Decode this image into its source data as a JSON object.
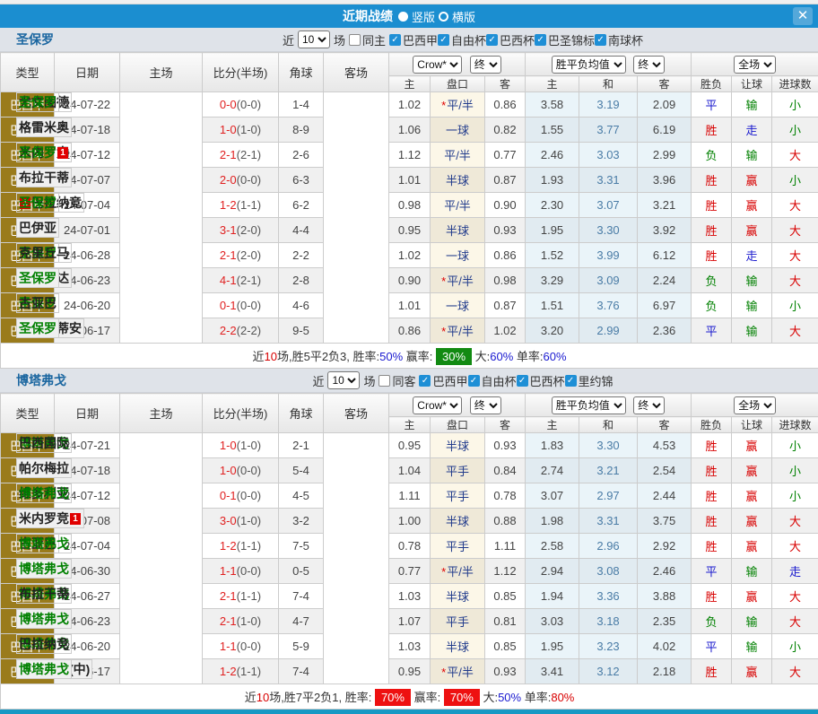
{
  "titlebar": {
    "title": "近期战绩",
    "vertical": "竖版",
    "horizontal": "横版",
    "close_icon": "✕"
  },
  "table": {
    "main_headers": [
      "类型",
      "日期",
      "主场",
      "比分(半场)",
      "角球",
      "客场"
    ],
    "sub_headers": [
      "主",
      "盘口",
      "客",
      "主",
      "和",
      "客",
      "胜负",
      "让球",
      "进球数"
    ],
    "selects": {
      "odds_company": "Crow*",
      "final_a": "终",
      "avg_label": "胜平负均值",
      "final_b": "终",
      "scope": "全场"
    }
  },
  "colors": {
    "titlebar_bg": "#1b8ed0",
    "filterbar_bg": "#dfe3e9",
    "checkbox_blue": "#1e8fd6",
    "league_cell_bg": "#9a7b1c",
    "win_red": "#d80000",
    "lose_green": "#008000",
    "draw_blue": "#1a1ace",
    "avg_draw_text": "#4a7ca6",
    "badge_green_bg": "#128a12",
    "badge_red_bg": "#ee1111",
    "bottom_bar": "#1799c4"
  },
  "sections": [
    {
      "team": "圣保罗",
      "filter": {
        "near": "近",
        "count": "10",
        "games": "场",
        "same": "同主",
        "leagues": [
          "巴西甲",
          "自由杯",
          "巴西杯",
          "巴圣锦标",
          "南球杯"
        ]
      },
      "rows": [
        {
          "league": "巴西甲",
          "date": "24-07-22",
          "home": {
            "name": "尤文图德"
          },
          "score": "0-0",
          "half": "(0-0)",
          "corner": "1-4",
          "away": {
            "name": "圣保罗",
            "green": true
          },
          "odds": [
            "1.02",
            "*平/半",
            "0.86"
          ],
          "avg": [
            "3.58",
            "3.19",
            "2.09"
          ],
          "res": [
            "平",
            "输",
            "小"
          ]
        },
        {
          "league": "巴西甲",
          "date": "24-07-18",
          "home": {
            "name": "圣保罗",
            "green": true,
            "badge": "L"
          },
          "score": "1-0",
          "half": "(1-0)",
          "corner": "8-9",
          "away": {
            "name": "格雷米奥"
          },
          "odds": [
            "1.06",
            "一球",
            "0.82"
          ],
          "avg": [
            "1.55",
            "3.77",
            "6.19"
          ],
          "res": [
            "胜",
            "走",
            "小"
          ]
        },
        {
          "league": "巴西甲",
          "date": "24-07-12",
          "home": {
            "name": "米内罗竞"
          },
          "score": "2-1",
          "half": "(2-1)",
          "corner": "2-6",
          "away": {
            "name": "圣保罗",
            "green": true,
            "badge": "R"
          },
          "odds": [
            "1.12",
            "平/半",
            "0.77"
          ],
          "avg": [
            "2.46",
            "3.03",
            "2.99"
          ],
          "res": [
            "负",
            "输",
            "大"
          ]
        },
        {
          "league": "巴西甲",
          "date": "24-07-07",
          "home": {
            "name": "圣保罗",
            "green": true
          },
          "score": "2-0",
          "half": "(0-0)",
          "corner": "6-3",
          "away": {
            "name": "布拉干蒂"
          },
          "odds": [
            "1.01",
            "半球",
            "0.87"
          ],
          "avg": [
            "1.93",
            "3.31",
            "3.96"
          ],
          "res": [
            "胜",
            "赢",
            "小"
          ]
        },
        {
          "league": "巴西甲",
          "date": "24-07-04",
          "home": {
            "name": "巴拉纳竞",
            "badge": "L"
          },
          "score": "1-2",
          "half": "(1-1)",
          "corner": "6-2",
          "away": {
            "name": "圣保罗",
            "green": true
          },
          "odds": [
            "0.98",
            "平/半",
            "0.90"
          ],
          "avg": [
            "2.30",
            "3.07",
            "3.21"
          ],
          "res": [
            "胜",
            "赢",
            "大"
          ]
        },
        {
          "league": "巴西甲",
          "date": "24-07-01",
          "home": {
            "name": "圣保罗",
            "green": true
          },
          "score": "3-1",
          "half": "(2-0)",
          "corner": "4-4",
          "away": {
            "name": "巴伊亚"
          },
          "odds": [
            "0.95",
            "半球",
            "0.93"
          ],
          "avg": [
            "1.95",
            "3.30",
            "3.92"
          ],
          "res": [
            "胜",
            "赢",
            "大"
          ]
        },
        {
          "league": "巴西甲",
          "date": "24-06-28",
          "home": {
            "name": "圣保罗",
            "green": true
          },
          "score": "2-1",
          "half": "(2-0)",
          "corner": "2-2",
          "away": {
            "name": "克里丘马"
          },
          "odds": [
            "1.02",
            "一球",
            "0.86"
          ],
          "avg": [
            "1.52",
            "3.99",
            "6.12"
          ],
          "res": [
            "胜",
            "走",
            "大"
          ]
        },
        {
          "league": "巴西甲",
          "date": "24-06-23",
          "home": {
            "name": "瓦斯科达"
          },
          "score": "4-1",
          "half": "(2-1)",
          "corner": "2-8",
          "away": {
            "name": "圣保罗",
            "green": true
          },
          "odds": [
            "0.90",
            "*平/半",
            "0.98"
          ],
          "avg": [
            "3.29",
            "3.09",
            "2.24"
          ],
          "res": [
            "负",
            "输",
            "大"
          ]
        },
        {
          "league": "巴西甲",
          "date": "24-06-20",
          "home": {
            "name": "圣保罗",
            "green": true
          },
          "score": "0-1",
          "half": "(0-0)",
          "corner": "4-6",
          "away": {
            "name": "古亚巴"
          },
          "odds": [
            "1.01",
            "一球",
            "0.87"
          ],
          "avg": [
            "1.51",
            "3.76",
            "6.97"
          ],
          "res": [
            "负",
            "输",
            "小"
          ]
        },
        {
          "league": "巴西甲",
          "date": "24-06-17",
          "home": {
            "name": "科林蒂安",
            "badge": "L"
          },
          "score": "2-2",
          "half": "(2-2)",
          "corner": "9-5",
          "away": {
            "name": "圣保罗",
            "green": true
          },
          "odds": [
            "0.86",
            "*平/半",
            "1.02"
          ],
          "avg": [
            "3.20",
            "2.99",
            "2.36"
          ],
          "res": [
            "平",
            "输",
            "大"
          ]
        }
      ],
      "summary": [
        {
          "t": "近"
        },
        {
          "t": "10",
          "c": "red"
        },
        {
          "t": "场,胜5平2负3, 胜率:"
        },
        {
          "t": "50%",
          "c": "blue"
        },
        {
          "t": " 赢率: "
        },
        {
          "t": "30%",
          "c": "badge-green"
        },
        {
          "t": " 大:"
        },
        {
          "t": "60%",
          "c": "blue"
        },
        {
          "t": " 单率:"
        },
        {
          "t": "60%",
          "c": "blue"
        }
      ]
    },
    {
      "team": "博塔弗戈",
      "filter": {
        "near": "近",
        "count": "10",
        "games": "场",
        "same": "同客",
        "leagues": [
          "巴西甲",
          "自由杯",
          "巴西杯",
          "里约锦"
        ]
      },
      "rows": [
        {
          "league": "巴西甲",
          "date": "24-07-21",
          "home": {
            "name": "博塔弗戈",
            "green": true
          },
          "score": "1-0",
          "half": "(1-0)",
          "corner": "2-1",
          "away": {
            "name": "巴西国际"
          },
          "odds": [
            "0.95",
            "半球",
            "0.93"
          ],
          "avg": [
            "1.83",
            "3.30",
            "4.53"
          ],
          "res": [
            "胜",
            "赢",
            "小"
          ]
        },
        {
          "league": "巴西甲",
          "date": "24-07-18",
          "home": {
            "name": "博塔弗戈",
            "green": true
          },
          "score": "1-0",
          "half": "(0-0)",
          "corner": "5-4",
          "away": {
            "name": "帕尔梅拉"
          },
          "odds": [
            "1.04",
            "平手",
            "0.84"
          ],
          "avg": [
            "2.74",
            "3.21",
            "2.54"
          ],
          "res": [
            "胜",
            "赢",
            "小"
          ]
        },
        {
          "league": "巴西甲",
          "date": "24-07-12",
          "home": {
            "name": "维多利亚"
          },
          "score": "0-1",
          "half": "(0-0)",
          "corner": "4-5",
          "away": {
            "name": "博塔弗戈",
            "green": true
          },
          "odds": [
            "1.11",
            "平手",
            "0.78"
          ],
          "avg": [
            "3.07",
            "2.97",
            "2.44"
          ],
          "res": [
            "胜",
            "赢",
            "小"
          ]
        },
        {
          "league": "巴西甲",
          "date": "24-07-08",
          "home": {
            "name": "博塔弗戈",
            "green": true
          },
          "score": "3-0",
          "half": "(1-0)",
          "corner": "3-2",
          "away": {
            "name": "米内罗竞",
            "badge": "R"
          },
          "odds": [
            "1.00",
            "半球",
            "0.88"
          ],
          "avg": [
            "1.98",
            "3.31",
            "3.75"
          ],
          "res": [
            "胜",
            "赢",
            "大"
          ]
        },
        {
          "league": "巴西甲",
          "date": "24-07-04",
          "home": {
            "name": "古亚巴"
          },
          "score": "1-2",
          "half": "(1-1)",
          "corner": "7-5",
          "away": {
            "name": "博塔弗戈",
            "green": true
          },
          "odds": [
            "0.78",
            "平手",
            "1.11"
          ],
          "avg": [
            "2.58",
            "2.96",
            "2.92"
          ],
          "res": [
            "胜",
            "赢",
            "大"
          ]
        },
        {
          "league": "巴西甲",
          "date": "24-06-30",
          "home": {
            "name": "瓦斯科达"
          },
          "score": "1-1",
          "half": "(0-0)",
          "corner": "0-5",
          "away": {
            "name": "博塔弗戈",
            "green": true
          },
          "odds": [
            "0.77",
            "*平/半",
            "1.12"
          ],
          "avg": [
            "2.94",
            "3.08",
            "2.46"
          ],
          "res": [
            "平",
            "输",
            "走"
          ]
        },
        {
          "league": "巴西甲",
          "date": "24-06-27",
          "home": {
            "name": "博塔弗戈",
            "green": true
          },
          "score": "2-1",
          "half": "(1-1)",
          "corner": "7-4",
          "away": {
            "name": "布拉干蒂"
          },
          "odds": [
            "1.03",
            "半球",
            "0.85"
          ],
          "avg": [
            "1.94",
            "3.36",
            "3.88"
          ],
          "res": [
            "胜",
            "赢",
            "大"
          ]
        },
        {
          "league": "巴西甲",
          "date": "24-06-23",
          "home": {
            "name": "克里丘马"
          },
          "score": "2-1",
          "half": "(1-0)",
          "corner": "4-7",
          "away": {
            "name": "博塔弗戈",
            "green": true
          },
          "odds": [
            "1.07",
            "平手",
            "0.81"
          ],
          "avg": [
            "3.03",
            "3.18",
            "2.35"
          ],
          "res": [
            "负",
            "输",
            "大"
          ]
        },
        {
          "league": "巴西甲",
          "date": "24-06-20",
          "home": {
            "name": "博塔弗戈",
            "green": true
          },
          "score": "1-1",
          "half": "(0-0)",
          "corner": "5-9",
          "away": {
            "name": "巴拉纳竞"
          },
          "odds": [
            "1.03",
            "半球",
            "0.85"
          ],
          "avg": [
            "1.95",
            "3.23",
            "4.02"
          ],
          "res": [
            "平",
            "输",
            "小"
          ]
        },
        {
          "league": "巴西甲",
          "date": "24-06-17",
          "home": {
            "name": "格雷米奥(中)"
          },
          "score": "1-2",
          "half": "(1-1)",
          "corner": "7-4",
          "away": {
            "name": "博塔弗戈",
            "green": true
          },
          "odds": [
            "0.95",
            "*平/半",
            "0.93"
          ],
          "avg": [
            "3.41",
            "3.12",
            "2.18"
          ],
          "res": [
            "胜",
            "赢",
            "大"
          ]
        }
      ],
      "summary": [
        {
          "t": "近"
        },
        {
          "t": "10",
          "c": "red"
        },
        {
          "t": "场,胜7平2负1, 胜率: "
        },
        {
          "t": "70%",
          "c": "badge-red"
        },
        {
          "t": " 赢率: "
        },
        {
          "t": "70%",
          "c": "badge-red"
        },
        {
          "t": " 大:"
        },
        {
          "t": "50%",
          "c": "blue"
        },
        {
          "t": " 单率:"
        },
        {
          "t": "80%",
          "c": "red"
        }
      ]
    }
  ]
}
